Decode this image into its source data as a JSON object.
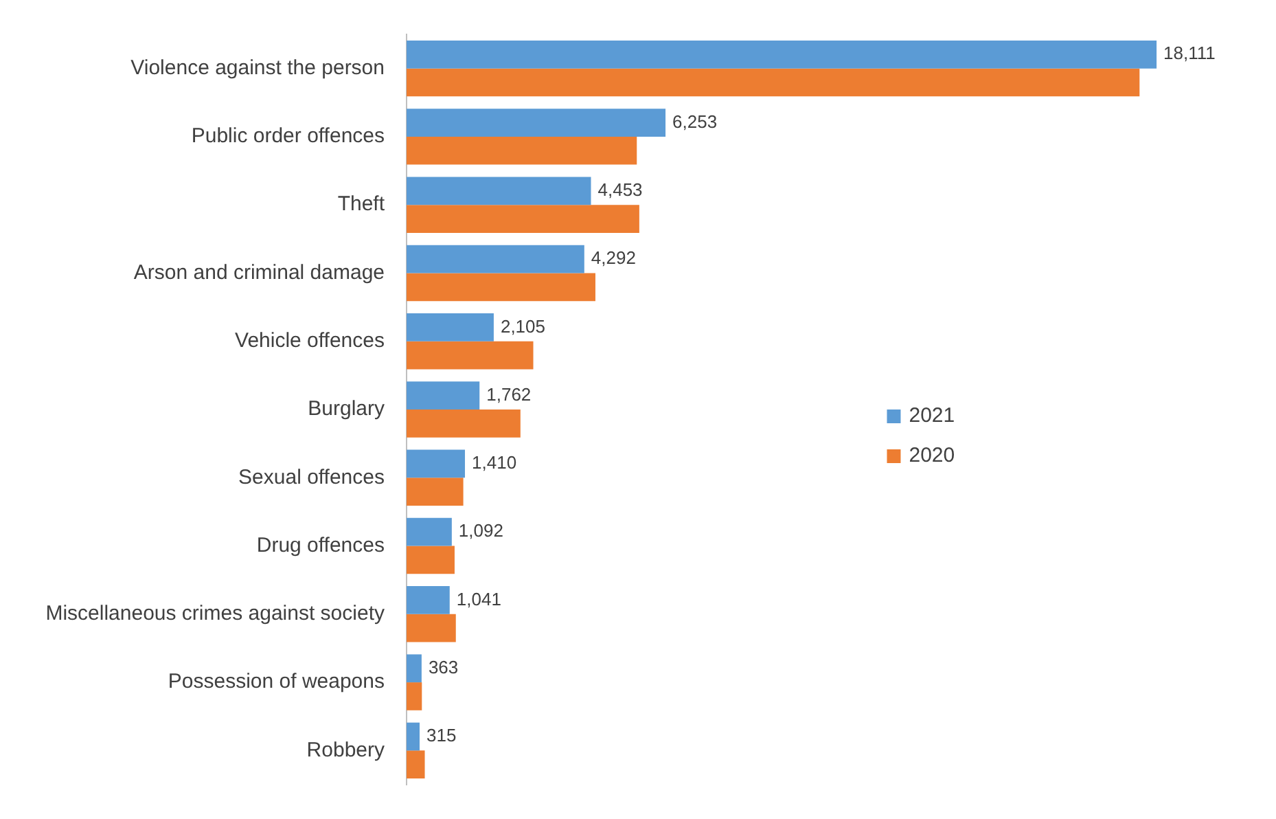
{
  "chart_data": {
    "type": "bar",
    "orientation": "horizontal",
    "categories": [
      "Violence against the person",
      "Public order offences",
      "Theft",
      "Arson and criminal damage",
      "Vehicle offences",
      "Burglary",
      "Sexual offences",
      "Drug offences",
      "Miscellaneous crimes against society",
      "Possession of weapons",
      "Robbery"
    ],
    "series": [
      {
        "name": "2021",
        "color": "#5b9bd5",
        "values": [
          18111,
          6253,
          4453,
          4292,
          2105,
          1762,
          1410,
          1092,
          1041,
          363,
          315
        ],
        "value_labels": [
          "18,111",
          "6,253",
          "4,453",
          "4,292",
          "2,105",
          "1,762",
          "1,410",
          "1,092",
          "1,041",
          "363",
          "315"
        ]
      },
      {
        "name": "2020",
        "color": "#ed7d31",
        "values": [
          17700,
          5560,
          5620,
          4560,
          3060,
          2750,
          1370,
          1160,
          1190,
          370,
          440
        ]
      }
    ],
    "tick_labels": "y",
    "grid": false,
    "legend": "right"
  }
}
